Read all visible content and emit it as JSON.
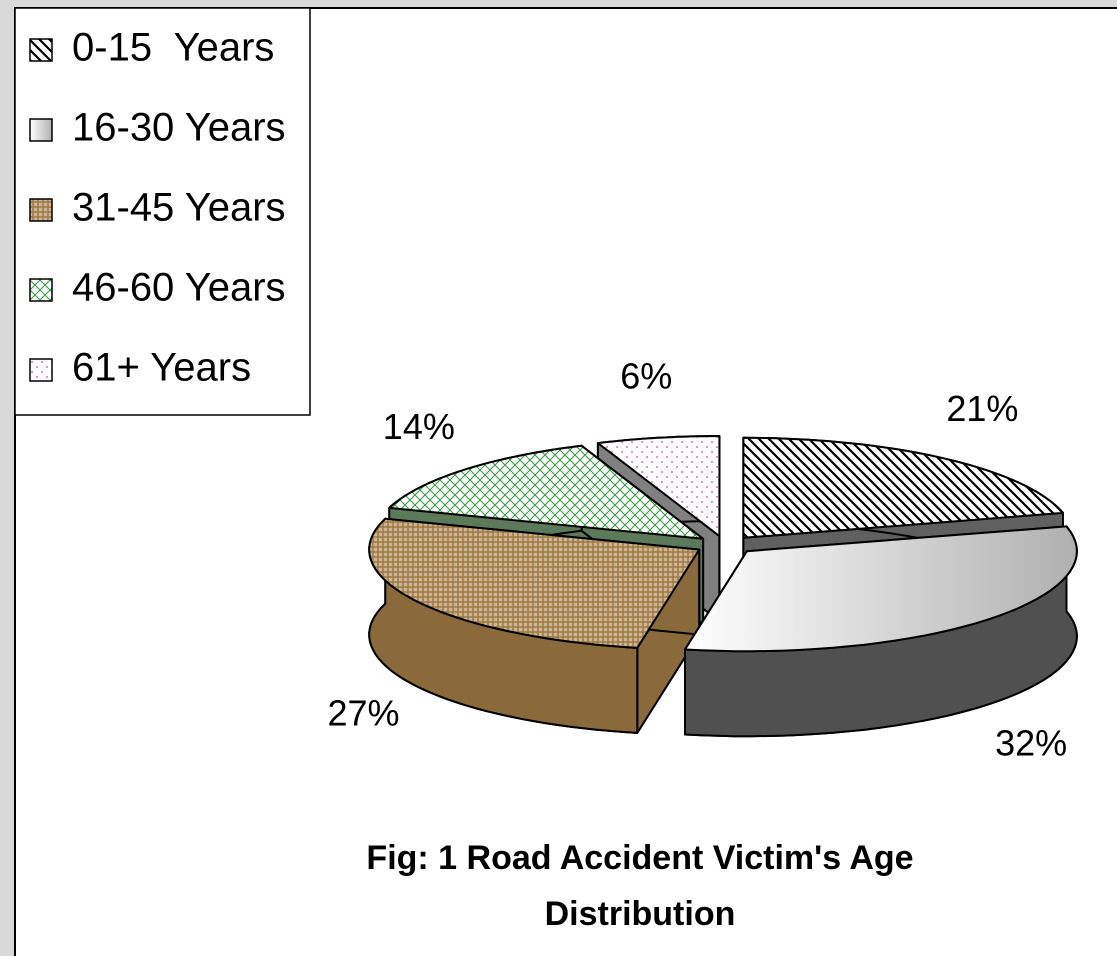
{
  "chart_data": {
    "type": "pie",
    "title": "Fig: 1 Road Accident Victim's Age Distribution",
    "categories": [
      "0-15  Years",
      "16-30 Years",
      "31-45 Years",
      "46-60 Years",
      "61+ Years"
    ],
    "values": [
      21,
      32,
      27,
      14,
      6
    ],
    "value_labels": [
      "21%",
      "32%",
      "27%",
      "14%",
      "6%"
    ],
    "colors": [
      "#000000",
      "#b0b0b0",
      "#a07840",
      "#2e9a3a",
      "#c050b0"
    ],
    "legend": "top-left"
  }
}
